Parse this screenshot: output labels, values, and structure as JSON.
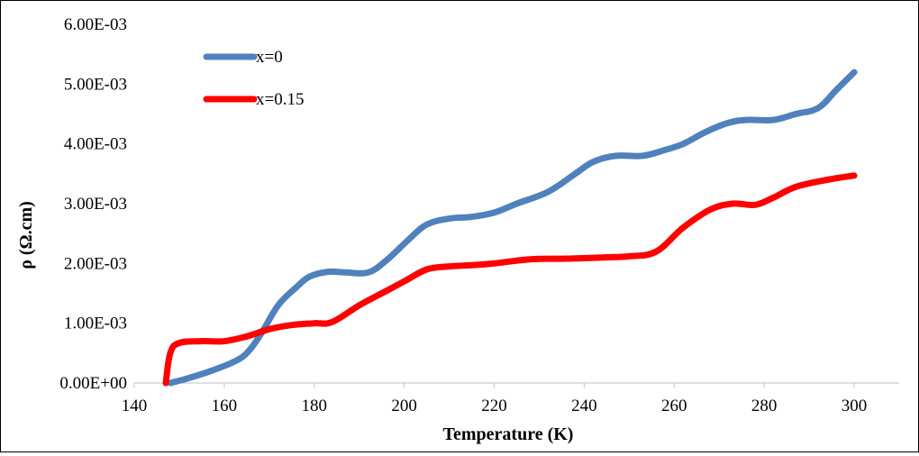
{
  "chart_data": {
    "type": "line",
    "title": "",
    "xlabel": "Temperature  (K)",
    "ylabel": "ρ (Ω.cm)",
    "xlim": [
      140,
      310
    ],
    "ylim": [
      0,
      0.006
    ],
    "x_ticks": [
      140,
      160,
      180,
      200,
      220,
      240,
      260,
      280,
      300
    ],
    "x_tick_labels": [
      "140",
      "160",
      "180",
      "200",
      "220",
      "240",
      "260",
      "280",
      "300"
    ],
    "y_ticks": [
      0,
      0.001,
      0.002,
      0.003,
      0.004,
      0.005,
      0.006
    ],
    "y_tick_labels": [
      "0.00E+00",
      "1.00E-03",
      "2.00E-03",
      "3.00E-03",
      "4.00E-03",
      "5.00E-03",
      "6.00E-03"
    ],
    "grid": false,
    "legend_position": "top-left",
    "series": [
      {
        "name": "x=0",
        "color": "#4f81bd",
        "points": [
          [
            148,
            0.0
          ],
          [
            152,
            8e-05
          ],
          [
            157,
            0.0002
          ],
          [
            162,
            0.00035
          ],
          [
            165,
            0.0005
          ],
          [
            168,
            0.0008
          ],
          [
            172,
            0.0013
          ],
          [
            176,
            0.0016
          ],
          [
            179,
            0.00178
          ],
          [
            183,
            0.00186
          ],
          [
            187,
            0.00185
          ],
          [
            192,
            0.00185
          ],
          [
            196,
            0.00205
          ],
          [
            201,
            0.0024
          ],
          [
            205,
            0.00265
          ],
          [
            210,
            0.00275
          ],
          [
            215,
            0.00278
          ],
          [
            220,
            0.00285
          ],
          [
            225,
            0.003
          ],
          [
            232,
            0.0032
          ],
          [
            238,
            0.0035
          ],
          [
            242,
            0.0037
          ],
          [
            247,
            0.0038
          ],
          [
            253,
            0.0038
          ],
          [
            258,
            0.0039
          ],
          [
            262,
            0.004
          ],
          [
            267,
            0.0042
          ],
          [
            272,
            0.00435
          ],
          [
            276,
            0.0044
          ],
          [
            282,
            0.0044
          ],
          [
            287,
            0.0045
          ],
          [
            292,
            0.0046
          ],
          [
            296,
            0.0049
          ],
          [
            300,
            0.0052
          ]
        ]
      },
      {
        "name": "x=0.15",
        "color": "#ff0000",
        "points": [
          [
            147,
            0.0
          ],
          [
            148,
            0.0005
          ],
          [
            150,
            0.00067
          ],
          [
            155,
            0.0007
          ],
          [
            160,
            0.0007
          ],
          [
            165,
            0.00078
          ],
          [
            170,
            0.0009
          ],
          [
            175,
            0.00097
          ],
          [
            180,
            0.001
          ],
          [
            184,
            0.00102
          ],
          [
            190,
            0.0013
          ],
          [
            195,
            0.0015
          ],
          [
            200,
            0.0017
          ],
          [
            205,
            0.0019
          ],
          [
            210,
            0.00195
          ],
          [
            215,
            0.00197
          ],
          [
            220,
            0.002
          ],
          [
            228,
            0.00207
          ],
          [
            236,
            0.00208
          ],
          [
            244,
            0.0021
          ],
          [
            250,
            0.00212
          ],
          [
            256,
            0.0022
          ],
          [
            262,
            0.0026
          ],
          [
            268,
            0.0029
          ],
          [
            273,
            0.003
          ],
          [
            278,
            0.00298
          ],
          [
            282,
            0.0031
          ],
          [
            287,
            0.00328
          ],
          [
            294,
            0.0034
          ],
          [
            300,
            0.00347
          ]
        ]
      }
    ]
  }
}
